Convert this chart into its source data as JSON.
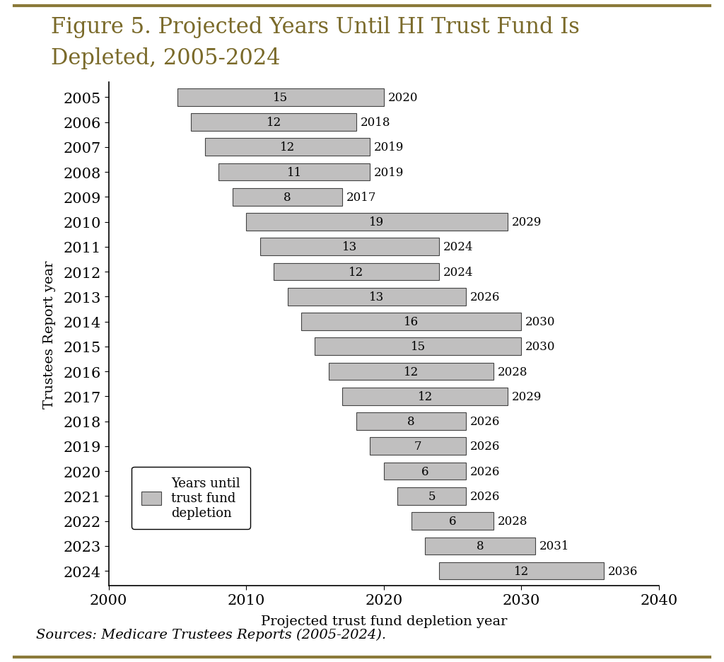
{
  "report_years": [
    2005,
    2006,
    2007,
    2008,
    2009,
    2010,
    2011,
    2012,
    2013,
    2014,
    2015,
    2016,
    2017,
    2018,
    2019,
    2020,
    2021,
    2022,
    2023,
    2024
  ],
  "years_until_depletion": [
    15,
    12,
    12,
    11,
    8,
    19,
    13,
    12,
    13,
    16,
    15,
    12,
    12,
    8,
    7,
    6,
    5,
    6,
    8,
    12
  ],
  "depletion_years": [
    2020,
    2018,
    2019,
    2019,
    2017,
    2029,
    2024,
    2024,
    2026,
    2030,
    2030,
    2028,
    2029,
    2026,
    2026,
    2026,
    2026,
    2028,
    2031,
    2036
  ],
  "bar_color": "#c0bfbf",
  "bar_edgecolor": "#444444",
  "title_line1": "Figure 5. Projected Years Until HI Trust Fund Is",
  "title_line2": "Depleted, 2005-2024",
  "xlabel": "Projected trust fund depletion year",
  "ylabel": "Trustees Report year",
  "xlim": [
    2000,
    2040
  ],
  "xticks": [
    2000,
    2010,
    2020,
    2030,
    2040
  ],
  "title_color": "#7a6a2a",
  "sources_italic": "Sources: Medicare Trustees Reports ",
  "sources_normal": "(2005-2024).",
  "legend_label": "Years until\ntrust fund\ndepletion",
  "background_color": "#ffffff",
  "border_color": "#8b7a3a",
  "title_fontsize": 22,
  "axis_label_fontsize": 14,
  "tick_fontsize": 15,
  "bar_label_fontsize": 12,
  "depletion_label_fontsize": 12,
  "sources_fontsize": 14
}
